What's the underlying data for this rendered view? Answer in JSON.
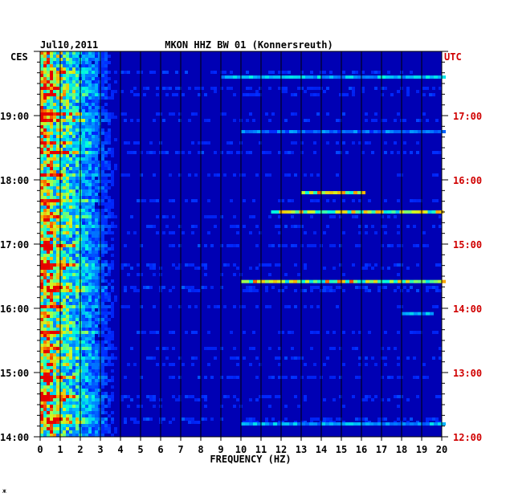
{
  "chart_data": {
    "type": "heatmap",
    "title_left": "Jul10,2011",
    "title": "MKON HHZ BW 01 (Konnersreuth)",
    "xlabel": "FREQUENCY (HZ)",
    "left_tz": "CES",
    "right_tz": "UTC",
    "x_ticks": [
      "0",
      "1",
      "2",
      "3",
      "4",
      "5",
      "6",
      "7",
      "8",
      "9",
      "10",
      "11",
      "12",
      "13",
      "14",
      "15",
      "16",
      "17",
      "18",
      "19",
      "20"
    ],
    "xlim": [
      0,
      20
    ],
    "y_ticks_left": [
      "19:00",
      "18:00",
      "17:00",
      "16:00",
      "15:00",
      "14:00"
    ],
    "y_ticks_right": [
      "17:00",
      "16:00",
      "15:00",
      "14:00",
      "13:00",
      "12:00"
    ],
    "time_range_ces": [
      "14:00",
      "20:00"
    ],
    "colors": {
      "background": "#0000b4",
      "grid": "#000000",
      "utc": "#d00000",
      "text": "#000000"
    },
    "prominent_lines": [
      {
        "time_ces": "19:36",
        "f_from": 9.0,
        "f_to": 20.0,
        "peak": 0.6
      },
      {
        "time_ces": "18:45",
        "f_from": 10.0,
        "f_to": 20.0,
        "peak": 0.45
      },
      {
        "time_ces": "17:48",
        "f_from": 13.0,
        "f_to": 16.0,
        "peak": 0.95
      },
      {
        "time_ces": "17:30",
        "f_from": 11.5,
        "f_to": 20.0,
        "peak": 0.9
      },
      {
        "time_ces": "16:25",
        "f_from": 10.0,
        "f_to": 20.0,
        "peak": 0.95
      },
      {
        "time_ces": "15:55",
        "f_from": 18.0,
        "f_to": 19.5,
        "peak": 0.6
      },
      {
        "time_ces": "14:12",
        "f_from": 10.0,
        "f_to": 20.0,
        "peak": 0.55
      }
    ],
    "low_frequency_energy_band": [
      0,
      4
    ],
    "footer_mark": "ж"
  }
}
